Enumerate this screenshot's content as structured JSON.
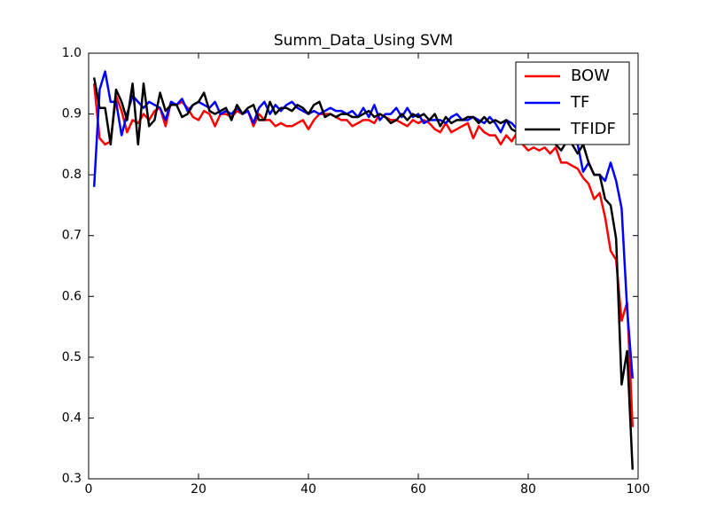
{
  "chart_data": {
    "type": "line",
    "title": "Summ_Data_Using SVM",
    "x": [
      1,
      2,
      3,
      4,
      5,
      6,
      7,
      8,
      9,
      10,
      11,
      12,
      13,
      14,
      15,
      16,
      17,
      18,
      19,
      20,
      21,
      22,
      23,
      24,
      25,
      26,
      27,
      28,
      29,
      30,
      31,
      32,
      33,
      34,
      35,
      36,
      37,
      38,
      39,
      40,
      41,
      42,
      43,
      44,
      45,
      46,
      47,
      48,
      49,
      50,
      51,
      52,
      53,
      54,
      55,
      56,
      57,
      58,
      59,
      60,
      61,
      62,
      63,
      64,
      65,
      66,
      67,
      68,
      69,
      70,
      71,
      72,
      73,
      74,
      75,
      76,
      77,
      78,
      79,
      80,
      81,
      82,
      83,
      84,
      85,
      86,
      87,
      88,
      89,
      90,
      91,
      92,
      93,
      94,
      95,
      96,
      97,
      98,
      99
    ],
    "series": [
      {
        "name": "BOW",
        "color": "#ff0000",
        "values": [
          0.95,
          0.86,
          0.85,
          0.855,
          0.93,
          0.905,
          0.87,
          0.89,
          0.885,
          0.9,
          0.89,
          0.905,
          0.91,
          0.88,
          0.92,
          0.915,
          0.92,
          0.91,
          0.895,
          0.89,
          0.905,
          0.9,
          0.88,
          0.9,
          0.9,
          0.895,
          0.905,
          0.9,
          0.905,
          0.88,
          0.9,
          0.89,
          0.89,
          0.88,
          0.885,
          0.88,
          0.88,
          0.885,
          0.89,
          0.875,
          0.89,
          0.9,
          0.9,
          0.9,
          0.895,
          0.89,
          0.89,
          0.88,
          0.885,
          0.89,
          0.89,
          0.885,
          0.9,
          0.895,
          0.89,
          0.89,
          0.885,
          0.88,
          0.89,
          0.885,
          0.89,
          0.885,
          0.875,
          0.87,
          0.885,
          0.87,
          0.875,
          0.88,
          0.885,
          0.86,
          0.88,
          0.87,
          0.865,
          0.865,
          0.85,
          0.865,
          0.855,
          0.87,
          0.85,
          0.84,
          0.845,
          0.84,
          0.845,
          0.835,
          0.845,
          0.82,
          0.82,
          0.815,
          0.81,
          0.795,
          0.785,
          0.76,
          0.77,
          0.73,
          0.675,
          0.66,
          0.56,
          0.59,
          0.385
        ]
      },
      {
        "name": "TF",
        "color": "#0000ff",
        "values": [
          0.78,
          0.94,
          0.97,
          0.92,
          0.92,
          0.865,
          0.9,
          0.93,
          0.92,
          0.91,
          0.92,
          0.915,
          0.91,
          0.89,
          0.92,
          0.915,
          0.925,
          0.905,
          0.915,
          0.92,
          0.915,
          0.91,
          0.92,
          0.9,
          0.905,
          0.9,
          0.91,
          0.9,
          0.905,
          0.885,
          0.91,
          0.92,
          0.9,
          0.915,
          0.905,
          0.915,
          0.92,
          0.91,
          0.905,
          0.9,
          0.905,
          0.9,
          0.905,
          0.91,
          0.905,
          0.905,
          0.9,
          0.905,
          0.895,
          0.91,
          0.895,
          0.915,
          0.89,
          0.9,
          0.9,
          0.91,
          0.895,
          0.91,
          0.895,
          0.9,
          0.885,
          0.89,
          0.89,
          0.89,
          0.885,
          0.895,
          0.9,
          0.89,
          0.89,
          0.895,
          0.89,
          0.885,
          0.895,
          0.885,
          0.87,
          0.89,
          0.885,
          0.875,
          0.88,
          0.89,
          0.88,
          0.875,
          0.87,
          0.875,
          0.865,
          0.87,
          0.865,
          0.86,
          0.85,
          0.805,
          0.82,
          0.8,
          0.8,
          0.79,
          0.82,
          0.79,
          0.745,
          0.58,
          0.465
        ]
      },
      {
        "name": "TFIDF",
        "color": "#000000",
        "values": [
          0.96,
          0.91,
          0.91,
          0.85,
          0.94,
          0.92,
          0.89,
          0.95,
          0.85,
          0.95,
          0.88,
          0.89,
          0.935,
          0.905,
          0.915,
          0.915,
          0.895,
          0.9,
          0.915,
          0.92,
          0.935,
          0.905,
          0.9,
          0.905,
          0.91,
          0.89,
          0.915,
          0.9,
          0.91,
          0.915,
          0.89,
          0.89,
          0.92,
          0.9,
          0.91,
          0.91,
          0.905,
          0.915,
          0.91,
          0.9,
          0.915,
          0.92,
          0.895,
          0.9,
          0.895,
          0.9,
          0.9,
          0.895,
          0.895,
          0.9,
          0.905,
          0.895,
          0.9,
          0.895,
          0.885,
          0.89,
          0.9,
          0.89,
          0.9,
          0.895,
          0.9,
          0.89,
          0.9,
          0.88,
          0.895,
          0.885,
          0.89,
          0.89,
          0.895,
          0.895,
          0.885,
          0.895,
          0.885,
          0.89,
          0.885,
          0.89,
          0.875,
          0.87,
          0.865,
          0.87,
          0.86,
          0.855,
          0.86,
          0.855,
          0.85,
          0.84,
          0.855,
          0.85,
          0.835,
          0.85,
          0.82,
          0.8,
          0.8,
          0.76,
          0.75,
          0.695,
          0.455,
          0.51,
          0.315
        ]
      }
    ],
    "xlim": [
      0,
      100
    ],
    "xticks": [
      0,
      20,
      40,
      60,
      80,
      100
    ],
    "ylim": [
      0.3,
      1
    ],
    "yticks": [
      0.3,
      0.4,
      0.5,
      0.6,
      0.7,
      0.8,
      0.9,
      {
        "value": 1,
        "label": "1.0"
      }
    ],
    "legend": "upper right"
  }
}
